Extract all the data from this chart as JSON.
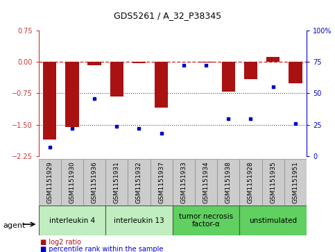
{
  "title": "GDS5261 / A_32_P38345",
  "samples": [
    "GSM1151929",
    "GSM1151930",
    "GSM1151936",
    "GSM1151931",
    "GSM1151932",
    "GSM1151937",
    "GSM1151933",
    "GSM1151934",
    "GSM1151938",
    "GSM1151928",
    "GSM1151935",
    "GSM1151951"
  ],
  "log2_ratio": [
    -1.85,
    -1.55,
    -0.08,
    -0.82,
    -0.03,
    -1.1,
    0.0,
    -0.02,
    -0.72,
    -0.42,
    0.12,
    -0.52
  ],
  "percentile_rank": [
    7,
    22,
    46,
    24,
    22,
    18,
    72,
    72,
    30,
    30,
    55,
    26
  ],
  "agents": [
    {
      "label": "interleukin 4",
      "start": 0,
      "end": 3,
      "color": "#c0eec0"
    },
    {
      "label": "interleukin 13",
      "start": 3,
      "end": 6,
      "color": "#c0eec0"
    },
    {
      "label": "tumor necrosis\nfactor-α",
      "start": 6,
      "end": 9,
      "color": "#60d060"
    },
    {
      "label": "unstimulated",
      "start": 9,
      "end": 12,
      "color": "#60d060"
    }
  ],
  "ylim_left": [
    -2.25,
    0.75
  ],
  "ylim_right": [
    0,
    100
  ],
  "yticks_left": [
    0.75,
    0,
    -0.75,
    -1.5,
    -2.25
  ],
  "yticks_right": [
    100,
    75,
    50,
    25,
    0
  ],
  "bar_color": "#aa1111",
  "dot_color": "#0000cc",
  "hline_color": "#cc3333",
  "dotted_color": "#444444",
  "bg_color": "#ffffff",
  "plot_bg": "#ffffff",
  "agent_label_fontsize": 7.5,
  "sample_label_fontsize": 6.5,
  "legend_log2_color": "#aa1111",
  "legend_pct_color": "#0000cc",
  "bar_width": 0.6
}
